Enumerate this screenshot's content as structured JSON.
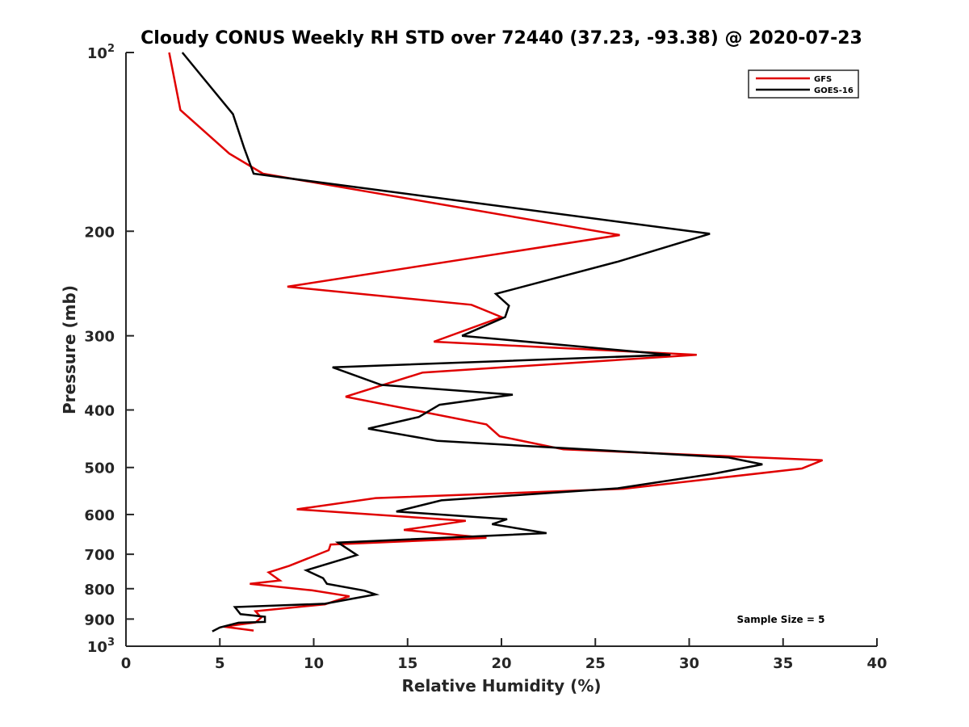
{
  "chart_data": {
    "type": "line",
    "title": "Cloudy CONUS Weekly RH STD over 72440 (37.23, -93.38) @ 2020-07-23",
    "xlabel": "Relative Humidity (%)",
    "ylabel": "Pressure (mb)",
    "xlim": [
      0,
      40
    ],
    "ylim": [
      100,
      1000
    ],
    "yscale": "log",
    "y_reversed": true,
    "x_ticks": [
      "0",
      "5",
      "10",
      "15",
      "20",
      "25",
      "30",
      "35",
      "40"
    ],
    "y_ticks": [
      {
        "value": 100,
        "base": "10",
        "exp": "2"
      },
      {
        "value": 200,
        "label": "200"
      },
      {
        "value": 300,
        "label": "300"
      },
      {
        "value": 400,
        "label": "400"
      },
      {
        "value": 500,
        "label": "500"
      },
      {
        "value": 600,
        "label": "600"
      },
      {
        "value": 700,
        "label": "700"
      },
      {
        "value": 800,
        "label": "800"
      },
      {
        "value": 900,
        "label": "900"
      },
      {
        "value": 1000,
        "base": "10",
        "exp": "3"
      }
    ],
    "legend_position": "top-right",
    "grid": false,
    "annotation": "Sample Size = 5",
    "series": [
      {
        "name": "GFS",
        "color": "#e00000",
        "points": [
          [
            2.3,
            100
          ],
          [
            2.9,
            125
          ],
          [
            5.5,
            148
          ],
          [
            7.3,
            160
          ],
          [
            26.3,
            203
          ],
          [
            8.6,
            248
          ],
          [
            18.4,
            266
          ],
          [
            20.0,
            279
          ],
          [
            16.4,
            307
          ],
          [
            30.4,
            323
          ],
          [
            15.8,
            346
          ],
          [
            11.7,
            380
          ],
          [
            19.2,
            423
          ],
          [
            19.9,
            443
          ],
          [
            23.3,
            466
          ],
          [
            37.1,
            486
          ],
          [
            36.0,
            502
          ],
          [
            26.5,
            543
          ],
          [
            13.3,
            563
          ],
          [
            9.1,
            588
          ],
          [
            18.1,
            615
          ],
          [
            14.8,
            637
          ],
          [
            19.2,
            657
          ],
          [
            10.9,
            674
          ],
          [
            10.8,
            689
          ],
          [
            8.7,
            732
          ],
          [
            7.6,
            751
          ],
          [
            8.2,
            775
          ],
          [
            6.6,
            785
          ],
          [
            9.9,
            805
          ],
          [
            11.9,
            824
          ],
          [
            10.6,
            850
          ],
          [
            6.9,
            873
          ],
          [
            7.2,
            895
          ],
          [
            6.9,
            912
          ],
          [
            5.2,
            927
          ],
          [
            6.8,
            941
          ]
        ]
      },
      {
        "name": "GOES-16",
        "color": "#000000",
        "points": [
          [
            3.0,
            100
          ],
          [
            5.7,
            127
          ],
          [
            6.3,
            145
          ],
          [
            6.8,
            160
          ],
          [
            31.1,
            202
          ],
          [
            26.2,
            225
          ],
          [
            19.7,
            255
          ],
          [
            20.4,
            267
          ],
          [
            20.2,
            279
          ],
          [
            17.9,
            300
          ],
          [
            29.0,
            323
          ],
          [
            11.0,
            339
          ],
          [
            13.6,
            363
          ],
          [
            20.6,
            377
          ],
          [
            16.7,
            392
          ],
          [
            15.6,
            411
          ],
          [
            12.9,
            430
          ],
          [
            16.6,
            451
          ],
          [
            32.1,
            481
          ],
          [
            33.9,
            494
          ],
          [
            31.2,
            513
          ],
          [
            26.2,
            542
          ],
          [
            16.8,
            568
          ],
          [
            14.4,
            593
          ],
          [
            20.3,
            611
          ],
          [
            19.5,
            623
          ],
          [
            22.4,
            645
          ],
          [
            11.3,
            669
          ],
          [
            12.3,
            702
          ],
          [
            9.6,
            745
          ],
          [
            10.5,
            768
          ],
          [
            10.7,
            785
          ],
          [
            12.7,
            806
          ],
          [
            13.3,
            818
          ],
          [
            10.6,
            848
          ],
          [
            5.8,
            859
          ],
          [
            6.1,
            883
          ],
          [
            7.4,
            892
          ],
          [
            7.4,
            910
          ],
          [
            6.0,
            913
          ],
          [
            5.0,
            930
          ],
          [
            4.6,
            944
          ]
        ]
      }
    ]
  }
}
